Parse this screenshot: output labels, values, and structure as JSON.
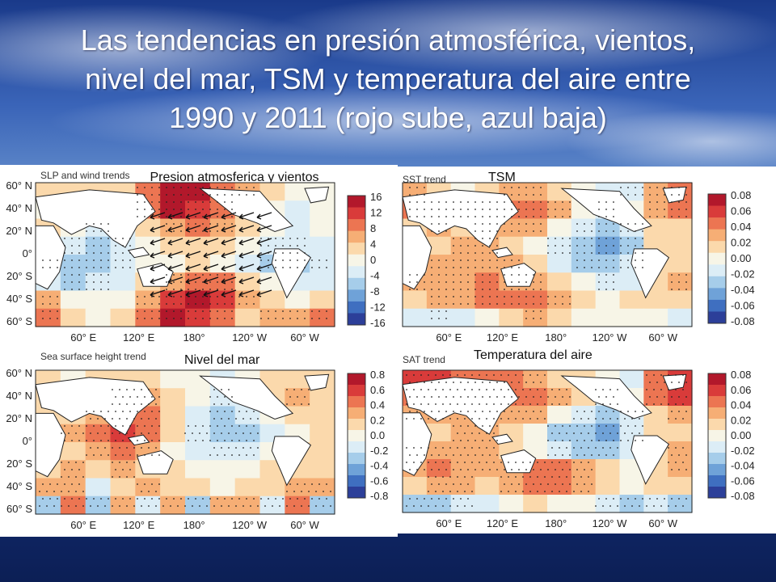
{
  "slide": {
    "title_lines": [
      "Las tendencias en presión atmosférica, vientos,",
      "nivel del mar, TSM y temperatura del  aire entre",
      "1990 y 2011 (rojo sube, azul baja)"
    ]
  },
  "colors": {
    "title": "#ffffff",
    "scale": [
      "#2c3f99",
      "#3f6fc0",
      "#6fa2d8",
      "#a6cdea",
      "#dcedf6",
      "#f7f5e7",
      "#fbd9ac",
      "#f6ae75",
      "#ec7552",
      "#d93b3a",
      "#b2182b"
    ],
    "land": "#ffffff",
    "outline": "#222222"
  },
  "maps": [
    {
      "id": "slp",
      "corner_label": "SLP and wind trends",
      "title": "Presion atmosferica y vientos",
      "lat_labels": [
        "60° N",
        "40° N",
        "20° N",
        "0°",
        "20° S",
        "40° S",
        "60° S"
      ],
      "lon_labels": [
        "60° E",
        "120° E",
        "180°",
        "120° W",
        "60° W"
      ],
      "colorbar": [
        "16",
        "12",
        "8",
        "4",
        "0",
        "-4",
        "-8",
        "-12",
        "-16"
      ],
      "field": [
        [
          0.1,
          0.1,
          0.2,
          0.1,
          0.6,
          0.9,
          0.9,
          0.6,
          0.3,
          0.1,
          0.0,
          -0.1
        ],
        [
          0.0,
          0.1,
          -0.1,
          0.2,
          0.5,
          0.9,
          0.8,
          0.5,
          0.2,
          0.0,
          -0.2,
          -0.1
        ],
        [
          0.1,
          -0.1,
          -0.3,
          -0.2,
          0.2,
          0.4,
          0.5,
          0.3,
          0.1,
          -0.1,
          -0.2,
          -0.1
        ],
        [
          -0.1,
          -0.3,
          -0.4,
          -0.3,
          0.0,
          0.1,
          0.2,
          0.1,
          -0.1,
          -0.3,
          -0.3,
          -0.2
        ],
        [
          -0.3,
          -0.5,
          -0.4,
          -0.3,
          -0.1,
          0.0,
          0.1,
          0.0,
          -0.2,
          -0.4,
          -0.4,
          -0.3
        ],
        [
          -0.2,
          -0.4,
          -0.3,
          -0.2,
          0.1,
          0.4,
          0.6,
          0.5,
          0.2,
          -0.1,
          -0.2,
          -0.2
        ],
        [
          0.3,
          0.0,
          -0.1,
          0.0,
          0.3,
          0.8,
          0.9,
          0.7,
          0.3,
          0.1,
          0.0,
          0.2
        ],
        [
          0.6,
          0.2,
          0.0,
          0.1,
          0.5,
          0.9,
          0.8,
          0.5,
          0.2,
          0.3,
          0.4,
          0.5
        ]
      ]
    },
    {
      "id": "sst",
      "corner_label": "SST trend",
      "title": "TSM",
      "lat_labels": [],
      "lon_labels": [
        "60° E",
        "120° E",
        "180°",
        "120° W",
        "60° W"
      ],
      "colorbar": [
        "0.08",
        "0.06",
        "0.04",
        "0.02",
        "0.00",
        "-0.02",
        "-0.04",
        "-0.06",
        "-0.08"
      ],
      "field": [
        [
          0.3,
          0.1,
          0.0,
          0.2,
          0.3,
          0.4,
          0.2,
          0.0,
          -0.2,
          -0.3,
          0.4,
          0.6
        ],
        [
          0.5,
          0.4,
          0.3,
          0.5,
          0.6,
          0.5,
          0.3,
          0.0,
          -0.3,
          -0.1,
          0.3,
          0.5
        ],
        [
          0.2,
          0.3,
          0.2,
          0.4,
          0.4,
          0.3,
          0.0,
          -0.3,
          -0.5,
          -0.3,
          0.2,
          0.2
        ],
        [
          0.1,
          0.2,
          0.3,
          0.3,
          0.2,
          0.0,
          -0.3,
          -0.5,
          -0.6,
          -0.4,
          0.1,
          0.1
        ],
        [
          0.2,
          0.3,
          0.4,
          0.4,
          0.3,
          0.1,
          -0.2,
          -0.4,
          -0.5,
          -0.3,
          0.1,
          0.2
        ],
        [
          0.3,
          0.4,
          0.4,
          0.5,
          0.4,
          0.3,
          0.1,
          -0.1,
          -0.3,
          -0.2,
          0.2,
          0.3
        ],
        [
          0.2,
          0.3,
          0.3,
          0.5,
          0.6,
          0.5,
          0.4,
          0.1,
          0.0,
          0.1,
          0.2,
          0.1
        ],
        [
          -0.2,
          -0.3,
          -0.2,
          0.0,
          0.2,
          0.3,
          0.1,
          0.0,
          -0.1,
          0.0,
          -0.1,
          -0.2
        ]
      ]
    },
    {
      "id": "ssh",
      "corner_label": "Sea surface height trend",
      "title": "Nivel del mar",
      "lat_labels": [
        "60° N",
        "40° N",
        "20° N",
        "0°",
        "20° S",
        "40° S",
        "60° S"
      ],
      "lon_labels": [
        "60° E",
        "120° E",
        "180°",
        "120° W",
        "60° W"
      ],
      "colorbar": [
        "0.8",
        "0.6",
        "0.4",
        "0.2",
        "0.0",
        "-0.2",
        "-0.4",
        "-0.6",
        "-0.8"
      ],
      "field": [
        [
          0.1,
          0.0,
          0.1,
          0.2,
          0.1,
          0.0,
          -0.1,
          -0.2,
          -0.1,
          0.1,
          0.2,
          0.1
        ],
        [
          0.2,
          0.1,
          0.2,
          0.5,
          0.4,
          0.1,
          -0.1,
          -0.3,
          -0.2,
          0.2,
          0.3,
          0.1
        ],
        [
          0.1,
          0.2,
          0.4,
          0.6,
          0.5,
          0.2,
          -0.2,
          -0.4,
          -0.3,
          -0.1,
          0.1,
          0.1
        ],
        [
          0.0,
          0.3,
          0.5,
          0.7,
          0.6,
          0.1,
          -0.3,
          -0.5,
          -0.4,
          -0.2,
          0.0,
          0.1
        ],
        [
          0.1,
          0.2,
          0.4,
          0.5,
          0.4,
          0.0,
          -0.2,
          -0.3,
          -0.3,
          -0.1,
          0.1,
          0.1
        ],
        [
          0.2,
          0.3,
          0.2,
          0.3,
          0.2,
          0.1,
          0.0,
          -0.1,
          -0.1,
          0.1,
          0.2,
          0.2
        ],
        [
          0.3,
          0.4,
          -0.2,
          0.2,
          0.3,
          0.2,
          0.1,
          0.0,
          0.1,
          0.2,
          0.4,
          0.3
        ],
        [
          -0.4,
          0.5,
          -0.5,
          0.4,
          -0.3,
          0.3,
          -0.4,
          0.3,
          0.4,
          -0.3,
          0.5,
          -0.4
        ]
      ]
    },
    {
      "id": "sat",
      "corner_label": "SAT trend",
      "title": "Temperatura del aire",
      "lat_labels": [],
      "lon_labels": [
        "60° E",
        "120° E",
        "180°",
        "120° W",
        "60° W"
      ],
      "colorbar": [
        "0.08",
        "0.06",
        "0.04",
        "0.02",
        "0.00",
        "-0.02",
        "-0.04",
        "-0.06",
        "-0.08"
      ],
      "field": [
        [
          0.7,
          0.8,
          0.5,
          0.6,
          0.6,
          0.4,
          0.2,
          0.1,
          -0.1,
          -0.2,
          0.6,
          0.8
        ],
        [
          0.6,
          0.7,
          0.5,
          0.6,
          0.6,
          0.5,
          0.3,
          0.1,
          -0.3,
          -0.1,
          0.5,
          0.7
        ],
        [
          0.3,
          0.4,
          0.3,
          0.4,
          0.4,
          0.3,
          0.0,
          -0.3,
          -0.5,
          -0.3,
          0.2,
          0.3
        ],
        [
          0.2,
          0.2,
          0.3,
          0.3,
          0.2,
          -0.1,
          -0.4,
          -0.5,
          -0.6,
          -0.3,
          0.1,
          0.2
        ],
        [
          0.3,
          0.4,
          0.3,
          0.3,
          0.1,
          -0.1,
          -0.3,
          -0.4,
          -0.4,
          -0.2,
          0.2,
          0.3
        ],
        [
          0.4,
          0.5,
          0.4,
          0.4,
          0.3,
          0.5,
          0.6,
          0.4,
          0.1,
          0.0,
          0.2,
          0.3
        ],
        [
          0.2,
          0.3,
          0.3,
          0.2,
          0.4,
          0.5,
          0.5,
          0.3,
          0.1,
          0.0,
          0.1,
          0.2
        ],
        [
          -0.5,
          -0.4,
          -0.3,
          -0.2,
          0.0,
          0.1,
          0.0,
          -0.1,
          -0.3,
          -0.4,
          -0.3,
          -0.4
        ]
      ]
    }
  ]
}
